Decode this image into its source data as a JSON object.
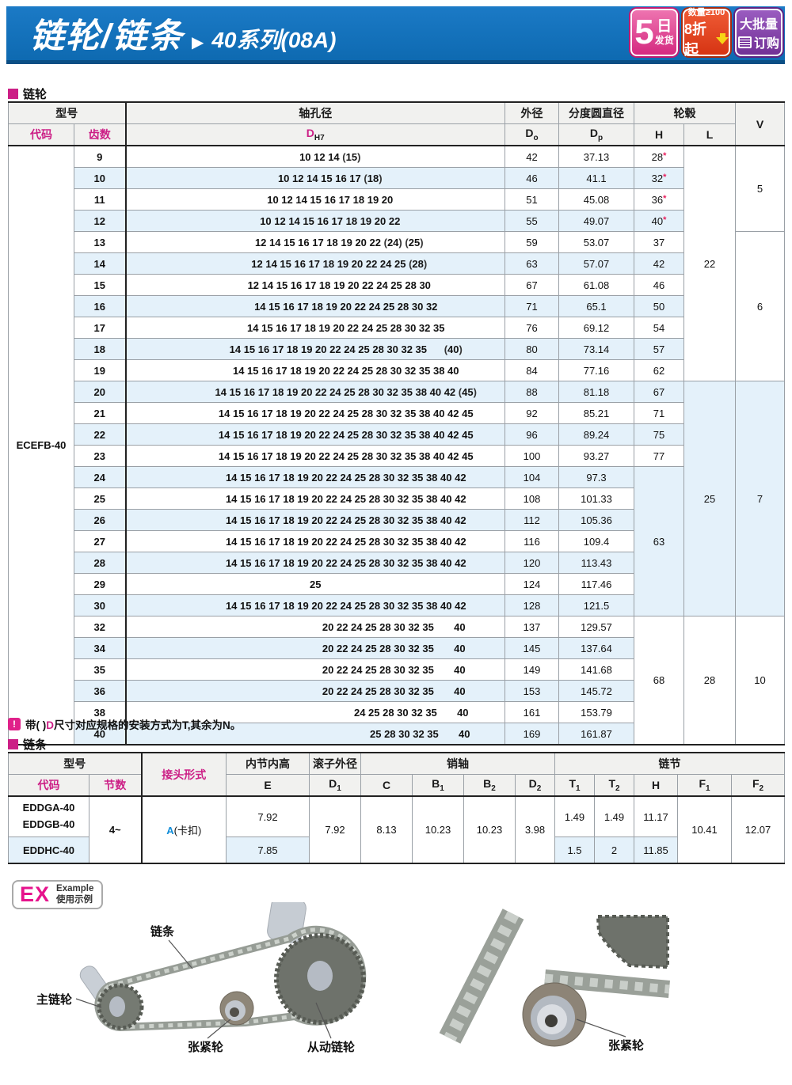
{
  "colors": {
    "banner_blue": "#1170ba",
    "accent_blue": "#0f8cd8",
    "magenta": "#cc1f86",
    "star_red": "#e8215e",
    "row_alt_blue": "#e4f1fa",
    "badge_pink": "#d42a80",
    "badge_red": "#d63413",
    "badge_purple": "#723196",
    "arrow_yellow": "#f7d516"
  },
  "banner": {
    "title": "链轮/链条",
    "arrow": "▶",
    "subtitle": "40系列(08A)",
    "badges": [
      {
        "big": "5",
        "right_top": "日",
        "right_bottom": "发货"
      },
      {
        "top": "数量≥100",
        "bottom": "8折起"
      },
      {
        "top": "大批量",
        "bottom": "订购"
      }
    ]
  },
  "sprocket": {
    "section": "链轮",
    "header": {
      "model": "型号",
      "code": "代码",
      "teeth": "齿数",
      "bore": "轴孔径",
      "d_t": "D",
      "d_s": "H7",
      "od": "外径",
      "do_t": "D",
      "do_s": "o",
      "pcd": "分度圆直径",
      "dp_t": "D",
      "dp_s": "p",
      "hub": "轮毂",
      "h": "H",
      "l": "L",
      "v": "V"
    },
    "code_value": "ECEFB-40",
    "rows": [
      {
        "teeth": "9",
        "bores": "10 12 14 (15)",
        "pad": 37,
        "do": "42",
        "dp": "37.13",
        "h": "28*"
      },
      {
        "teeth": "10",
        "bores": "10 12 14 15 16 17 (18)",
        "pad": 37,
        "do": "46",
        "dp": "41.1",
        "h": "32*"
      },
      {
        "teeth": "11",
        "bores": "10 12 14 15 16 17 18 19 20",
        "pad": 37,
        "do": "51",
        "dp": "45.08",
        "h": "36*"
      },
      {
        "teeth": "12",
        "bores": "10 12 14 15 16 17 18 19 20 22",
        "pad": 37,
        "do": "55",
        "dp": "49.07",
        "h": "40*"
      },
      {
        "teeth": "13",
        "bores": "12 14 15 16 17 18 19 20 22 (24) (25)",
        "pad": 60,
        "do": "59",
        "dp": "53.07",
        "h": "37"
      },
      {
        "teeth": "14",
        "bores": "12 14 15 16 17 18 19 20 22 24 25 (28)",
        "pad": 60,
        "do": "63",
        "dp": "57.07",
        "h": "42"
      },
      {
        "teeth": "15",
        "bores": "12 14 15 16 17 18 19 20 22 24 25 28 30",
        "pad": 60,
        "do": "67",
        "dp": "61.08",
        "h": "46"
      },
      {
        "teeth": "16",
        "bores": "14 15 16 17 18 19 20 22 24 25 28 30 32",
        "pad": 77,
        "do": "71",
        "dp": "65.1",
        "h": "50"
      },
      {
        "teeth": "17",
        "bores": "14 15 16 17 18 19 20 22 24 25 28 30 32 35",
        "pad": 77,
        "do": "76",
        "dp": "69.12",
        "h": "54"
      },
      {
        "teeth": "18",
        "bores": "14 15 16 17 18 19 20 22 24 25 28 30 32 35      (40)",
        "pad": 77,
        "do": "80",
        "dp": "73.14",
        "h": "57"
      },
      {
        "teeth": "19",
        "bores": "14 15 16 17 18 19 20 22 24 25 28 30 32 35 38 40",
        "pad": 77,
        "do": "84",
        "dp": "77.16",
        "h": "62"
      },
      {
        "teeth": "20",
        "bores": "14 15 16 17 18 19 20 22 24 25 28 30 32 35 38 40 42 (45)",
        "pad": 77,
        "do": "88",
        "dp": "81.18",
        "h": "67"
      },
      {
        "teeth": "21",
        "bores": "14 15 16 17 18 19 20 22 24 25 28 30 32 35 38 40 42 45",
        "pad": 77,
        "do": "92",
        "dp": "85.21",
        "h": "71"
      },
      {
        "teeth": "22",
        "bores": "14 15 16 17 18 19 20 22 24 25 28 30 32 35 38 40 42 45",
        "pad": 77,
        "do": "96",
        "dp": "89.24",
        "h": "75"
      },
      {
        "teeth": "23",
        "bores": "14 15 16 17 18 19 20 22 24 25 28 30 32 35 38 40 42 45",
        "pad": 77,
        "do": "100",
        "dp": "93.27",
        "h": "77"
      },
      {
        "teeth": "24",
        "bores": "14 15 16 17 18 19 20 22 24 25 28 30 32 35 38 40 42",
        "pad": 77,
        "do": "104",
        "dp": "97.3"
      },
      {
        "teeth": "25",
        "bores": "14 15 16 17 18 19 20 22 24 25 28 30 32 35 38 40 42",
        "pad": 77,
        "do": "108",
        "dp": "101.33"
      },
      {
        "teeth": "26",
        "bores": "14 15 16 17 18 19 20 22 24 25 28 30 32 35 38 40 42",
        "pad": 77,
        "do": "112",
        "dp": "105.36"
      },
      {
        "teeth": "27",
        "bores": "14 15 16 17 18 19 20 22 24 25 28 30 32 35 38 40 42",
        "pad": 77,
        "do": "116",
        "dp": "109.4"
      },
      {
        "teeth": "28",
        "bores": "14 15 16 17 18 19 20 22 24 25 28 30 32 35 38 40 42",
        "pad": 77,
        "do": "120",
        "dp": "113.43"
      },
      {
        "teeth": "29",
        "bores": "25",
        "center": true,
        "do": "124",
        "dp": "117.46"
      },
      {
        "teeth": "30",
        "bores": "14 15 16 17 18 19 20 22 24 25 28 30 32 35 38 40 42",
        "pad": 77,
        "do": "128",
        "dp": "121.5"
      },
      {
        "teeth": "32",
        "bores": "20 22 24 25 28 30 32 35       40",
        "pad": 198,
        "do": "137",
        "dp": "129.57"
      },
      {
        "teeth": "34",
        "bores": "20 22 24 25 28 30 32 35       40",
        "pad": 198,
        "do": "145",
        "dp": "137.64"
      },
      {
        "teeth": "35",
        "bores": "20 22 24 25 28 30 32 35       40",
        "pad": 198,
        "do": "149",
        "dp": "141.68"
      },
      {
        "teeth": "36",
        "bores": "20 22 24 25 28 30 32 35       40",
        "pad": 198,
        "do": "153",
        "dp": "145.72"
      },
      {
        "teeth": "38",
        "bores": "24 25 28 30 32 35       40",
        "pad": 242,
        "do": "161",
        "dp": "153.79"
      },
      {
        "teeth": "40",
        "bores": "25 28 30 32 35       40",
        "pad": 264,
        "do": "169",
        "dp": "161.87"
      }
    ],
    "h_spans": [
      {
        "at": 15,
        "rows": 7,
        "text": "63"
      },
      {
        "at": 22,
        "rows": 6,
        "text": "68"
      }
    ],
    "l_spans": [
      {
        "at": 0,
        "rows": 11,
        "text": "22"
      },
      {
        "at": 11,
        "rows": 11,
        "text": "25"
      },
      {
        "at": 22,
        "rows": 6,
        "text": "28"
      }
    ],
    "v_spans": [
      {
        "at": 0,
        "rows": 4,
        "text": "5"
      },
      {
        "at": 4,
        "rows": 7,
        "text": "6"
      },
      {
        "at": 11,
        "rows": 11,
        "text": "7"
      },
      {
        "at": 22,
        "rows": 6,
        "text": "10"
      }
    ]
  },
  "note": {
    "icon": "!",
    "pre": "带( )",
    "d": "D",
    "post": "尺寸对应规格的安装方式为T,其余为N。"
  },
  "chain": {
    "section": "链条",
    "header": {
      "model": "型号",
      "code": "代码",
      "count": "节数",
      "joint": "接头形式",
      "e_label": "内节内高",
      "d1_label": "滚子外径",
      "pin": "销轴",
      "link": "链节"
    },
    "cols": {
      "e": {
        "t": "E"
      },
      "d1": {
        "t": "D",
        "s": "1"
      },
      "c": {
        "t": "C"
      },
      "b1": {
        "t": "B",
        "s": "1"
      },
      "b2": {
        "t": "B",
        "s": "2"
      },
      "d2": {
        "t": "D",
        "s": "2"
      },
      "t1": {
        "t": "T",
        "s": "1"
      },
      "t2": {
        "t": "T",
        "s": "2"
      },
      "h": {
        "t": "H"
      },
      "f1": {
        "t": "F",
        "s": "1"
      },
      "f2": {
        "t": "F",
        "s": "2"
      }
    },
    "rowA": {
      "codes": [
        "EDDGA-40",
        "EDDGB-40"
      ],
      "e": "7.92",
      "t1": "1.49",
      "t2": "1.49",
      "h": "11.17"
    },
    "rowB": {
      "code": "EDDHC-40",
      "e": "7.85",
      "t1": "1.5",
      "t2": "2",
      "h": "11.85"
    },
    "merged": {
      "count": "4~",
      "joint_a": "A",
      "joint_rest": "(卡扣)",
      "d1": "7.92",
      "c": "8.13",
      "b1": "10.23",
      "b2": "10.23",
      "d2": "3.98",
      "f1": "10.41",
      "f2": "12.07"
    }
  },
  "example": {
    "ex": "EX",
    "en": "Example",
    "cn": "使用示例",
    "labels": {
      "chain": "链条",
      "main": "主链轮",
      "tension1": "张紧轮",
      "driven": "从动链轮",
      "tension2": "张紧轮"
    }
  }
}
